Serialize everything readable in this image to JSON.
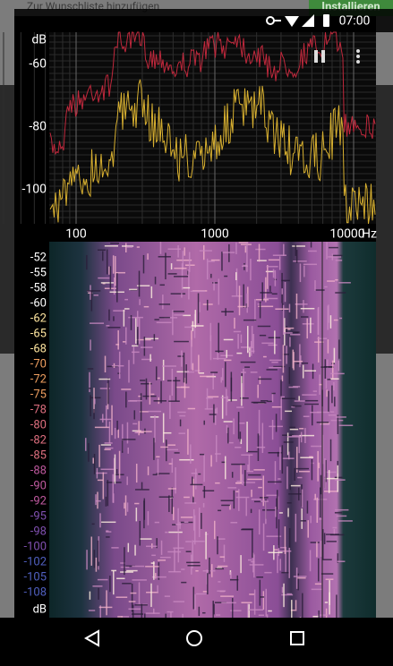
{
  "background_app": {
    "wishlist": "Zur Wunschliste hinzufügen",
    "install": "Installieren"
  },
  "status_bar": {
    "time": "07:00"
  },
  "spectrum": {
    "y_unit": "dB",
    "y_ticks": [
      "-60",
      "-80",
      "-100"
    ],
    "x_ticks": [
      "100",
      "1000",
      "10000"
    ],
    "x_unit": "Hz"
  },
  "spectrogram": {
    "unit": "dB",
    "scale_labels": [
      "-52",
      "-55",
      "-58",
      "-60",
      "-62",
      "-65",
      "-68",
      "-70",
      "-72",
      "-75",
      "-78",
      "-80",
      "-82",
      "-85",
      "-88",
      "-90",
      "-92",
      "-95",
      "-98",
      "-100",
      "-102",
      "-105",
      "-108"
    ]
  }
}
